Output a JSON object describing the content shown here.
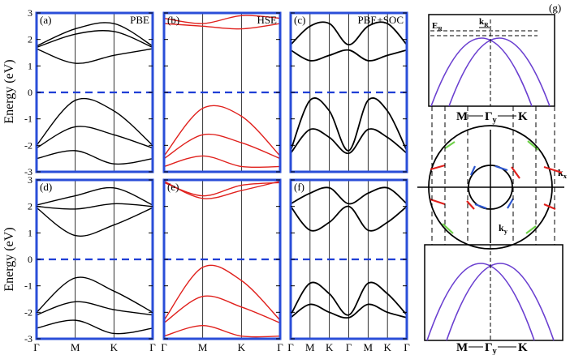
{
  "panels": [
    {
      "id": "a",
      "label": "(a)",
      "method": "PBE",
      "band_color": "#000000"
    },
    {
      "id": "b",
      "label": "(b)",
      "method": "HSE",
      "band_color": "#e0201c"
    },
    {
      "id": "c",
      "label": "(c)",
      "method": "PBE+SOC",
      "band_color": "#000000"
    },
    {
      "id": "d",
      "label": "(d)",
      "method": "",
      "band_color": "#000000"
    },
    {
      "id": "e",
      "label": "(e)",
      "method": "",
      "band_color": "#e0201c"
    },
    {
      "id": "f",
      "label": "(f)",
      "method": "",
      "band_color": "#000000"
    }
  ],
  "panel_g": {
    "label": "(g)"
  },
  "ylabel": "Energy (eV)",
  "yticks": [
    "3",
    "2",
    "1",
    "0",
    "-1",
    "-2",
    "-3"
  ],
  "kpath_short": [
    "Γ",
    "M",
    "K",
    "Γ"
  ],
  "kpath_long": [
    "Γ",
    "M",
    "K",
    "Γ",
    "M",
    "K",
    "Γ"
  ],
  "ylim": [
    -3,
    3
  ],
  "fermi_level": 0,
  "colors": {
    "frame": "#2a4ed8",
    "fermi": "#1f3fd6",
    "pbe": "#000000",
    "hse": "#e0201c",
    "rashba": "#6a3fd0",
    "arrow_red": "#e0201c",
    "arrow_blue": "#2d57d0",
    "arrow_green": "#6fd14a"
  },
  "schematic": {
    "top_labels": {
      "e_r": "E",
      "e_r_sub": "R",
      "k_r": "k",
      "k_r_sub": "R"
    },
    "ring_labels": {
      "kx": "k",
      "kx_sub": "x",
      "ky": "k",
      "ky_sub": "y",
      "m": "M",
      "gamma": "Γ",
      "gamma_sub": "y",
      "k": "K"
    },
    "bottom_labels": {
      "m": "M",
      "gamma": "Γ",
      "gamma_sub": "y",
      "k": "K"
    }
  },
  "chart_data": [
    {
      "type": "line",
      "panel": "a",
      "title": "PBE",
      "ylabel": "Energy (eV)",
      "ylim": [
        -3,
        3
      ],
      "x": [
        "Γ",
        "M",
        "K",
        "Γ"
      ],
      "series": [
        {
          "values": [
            1.75,
            2.4,
            2.6,
            1.75
          ]
        },
        {
          "values": [
            1.7,
            2.2,
            2.3,
            1.7
          ]
        },
        {
          "values": [
            1.65,
            1.1,
            1.4,
            1.65
          ]
        },
        {
          "values": [
            -2.0,
            -0.3,
            -0.7,
            -2.0
          ]
        },
        {
          "values": [
            -2.1,
            -1.3,
            -1.6,
            -2.1
          ]
        },
        {
          "values": [
            -2.5,
            -2.2,
            -2.7,
            -2.5
          ]
        }
      ]
    },
    {
      "type": "line",
      "panel": "b",
      "title": "HSE",
      "ylabel": "",
      "ylim": [
        -3,
        3
      ],
      "x": [
        "Γ",
        "M",
        "K",
        "Γ"
      ],
      "series": [
        {
          "values": [
            2.8,
            2.6,
            2.9,
            2.8
          ]
        },
        {
          "values": [
            2.6,
            2.5,
            2.4,
            2.6
          ]
        },
        {
          "values": [
            -2.4,
            -0.6,
            -0.9,
            -2.4
          ]
        },
        {
          "values": [
            -2.5,
            -1.6,
            -1.9,
            -2.5
          ]
        },
        {
          "values": [
            -2.8,
            -2.4,
            -2.8,
            -2.8
          ]
        }
      ]
    },
    {
      "type": "line",
      "panel": "c",
      "title": "PBE+SOC",
      "ylabel": "",
      "ylim": [
        -3,
        3
      ],
      "x": [
        "Γ",
        "M",
        "K",
        "Γ",
        "M",
        "K",
        "Γ"
      ],
      "series": [
        {
          "values": [
            1.8,
            2.5,
            2.6,
            1.8,
            2.5,
            2.6,
            1.8
          ]
        },
        {
          "values": [
            1.6,
            1.2,
            1.4,
            1.6,
            1.2,
            1.4,
            1.6
          ]
        },
        {
          "values": [
            -2.2,
            -0.3,
            -0.7,
            -2.2,
            -0.3,
            -0.7,
            -2.2
          ]
        },
        {
          "values": [
            -2.3,
            -1.4,
            -1.7,
            -2.3,
            -1.4,
            -1.7,
            -2.3
          ]
        }
      ]
    },
    {
      "type": "line",
      "panel": "d",
      "title": "",
      "ylabel": "Energy (eV)",
      "ylim": [
        -3,
        3
      ],
      "x": [
        "Γ",
        "M",
        "K",
        "Γ"
      ],
      "series": [
        {
          "values": [
            2.05,
            2.4,
            2.7,
            2.05
          ]
        },
        {
          "values": [
            2.0,
            1.9,
            2.1,
            2.0
          ]
        },
        {
          "values": [
            1.95,
            0.9,
            1.3,
            1.95
          ]
        },
        {
          "values": [
            -2.0,
            -0.7,
            -1.2,
            -2.0
          ]
        },
        {
          "values": [
            -2.1,
            -1.6,
            -1.9,
            -2.1
          ]
        },
        {
          "values": [
            -2.6,
            -2.3,
            -2.8,
            -2.6
          ]
        }
      ]
    },
    {
      "type": "line",
      "panel": "e",
      "title": "",
      "ylabel": "",
      "ylim": [
        -3,
        3
      ],
      "x": [
        "Γ",
        "M",
        "K",
        "Γ"
      ],
      "series": [
        {
          "values": [
            2.95,
            2.3,
            2.6,
            2.95
          ]
        },
        {
          "values": [
            2.9,
            2.4,
            2.8,
            2.9
          ]
        },
        {
          "values": [
            -2.3,
            -0.3,
            -0.8,
            -2.3
          ]
        },
        {
          "values": [
            -2.4,
            -1.4,
            -1.8,
            -2.4
          ]
        },
        {
          "values": [
            -2.9,
            -2.5,
            -2.9,
            -2.9
          ]
        }
      ]
    },
    {
      "type": "line",
      "panel": "f",
      "title": "",
      "ylabel": "",
      "ylim": [
        -3,
        3
      ],
      "x": [
        "Γ",
        "M",
        "K",
        "Γ",
        "M",
        "K",
        "Γ"
      ],
      "series": [
        {
          "values": [
            2.1,
            2.5,
            2.7,
            2.1,
            2.5,
            2.7,
            2.1
          ]
        },
        {
          "values": [
            2.0,
            1.1,
            1.4,
            2.0,
            1.1,
            1.4,
            2.0
          ]
        },
        {
          "values": [
            -2.1,
            -0.9,
            -1.3,
            -2.1,
            -0.9,
            -1.3,
            -2.1
          ]
        },
        {
          "values": [
            -2.2,
            -1.7,
            -2.0,
            -2.2,
            -1.7,
            -2.0,
            -2.2
          ]
        }
      ]
    }
  ]
}
